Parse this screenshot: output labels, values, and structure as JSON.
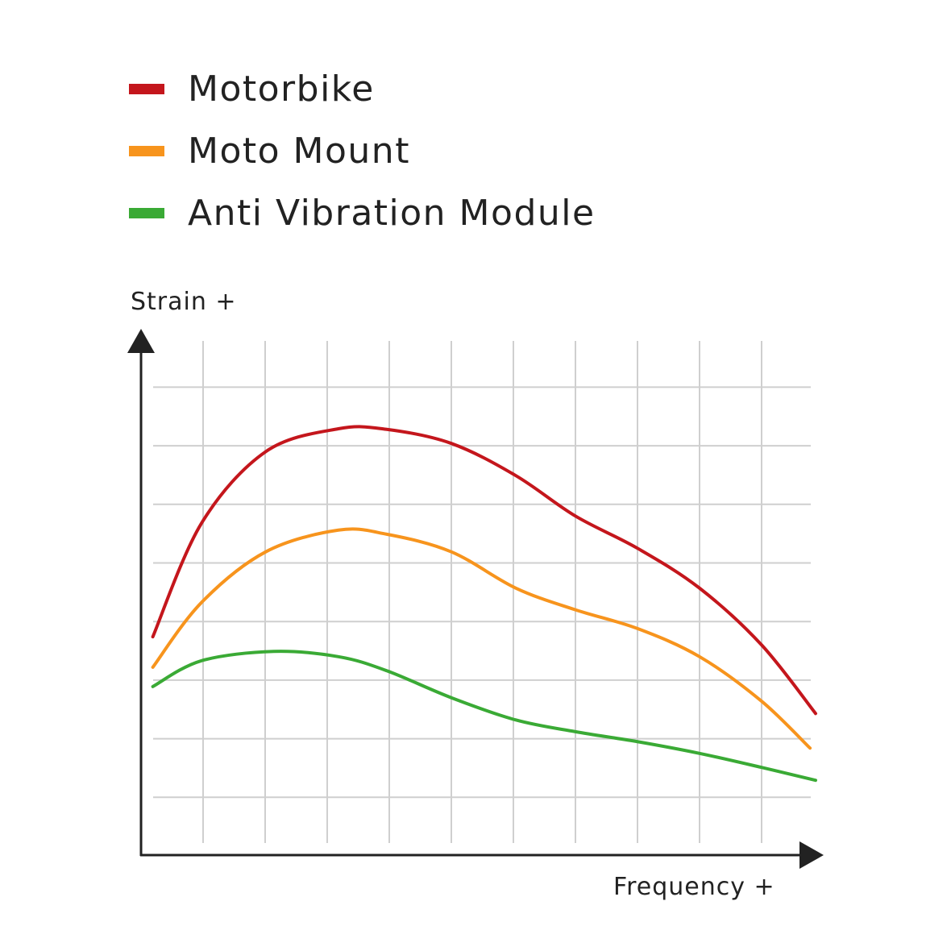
{
  "chart_data": {
    "type": "line",
    "title": "",
    "xlabel": "Frequency +",
    "ylabel": "Strain +",
    "grid": true,
    "legend_placement": "top-left",
    "xlim": [
      0,
      11
    ],
    "ylim": [
      0,
      8.8
    ],
    "series": [
      {
        "name": "Motorbike",
        "color": "#c4161c",
        "x": [
          0.19,
          0.97,
          2.01,
          3.18,
          3.96,
          5,
          6.04,
          7,
          8,
          9,
          10,
          10.87
        ],
        "y": [
          3.74,
          5.67,
          6.9,
          7.29,
          7.28,
          7.04,
          6.49,
          5.8,
          5.25,
          4.57,
          3.6,
          2.43
        ]
      },
      {
        "name": "Moto Mount",
        "color": "#f7941d",
        "x": [
          0.19,
          0.97,
          2.01,
          3.18,
          3.96,
          5,
          6.04,
          7,
          8,
          9,
          10,
          10.78
        ],
        "y": [
          3.22,
          4.32,
          5.19,
          5.56,
          5.49,
          5.19,
          4.57,
          4.2,
          3.88,
          3.4,
          2.64,
          1.84
        ]
      },
      {
        "name": "Anti Vibration Module",
        "color": "#3aaa35",
        "x": [
          0.19,
          0.97,
          2.14,
          3.18,
          3.96,
          5,
          6.04,
          7,
          8,
          9,
          10,
          10.87
        ],
        "y": [
          2.89,
          3.33,
          3.49,
          3.4,
          3.16,
          2.7,
          2.32,
          2.12,
          1.95,
          1.75,
          1.51,
          1.29
        ]
      }
    ]
  }
}
